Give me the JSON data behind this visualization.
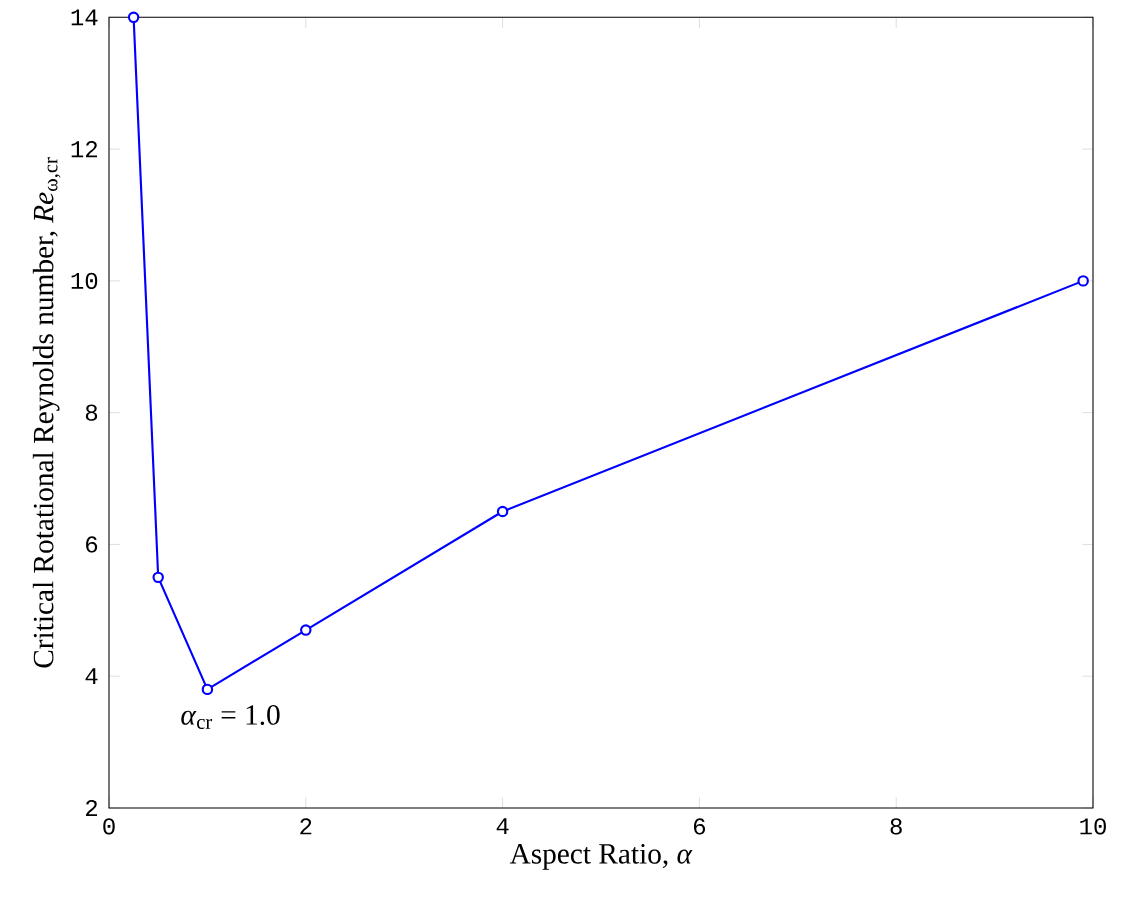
{
  "chart_data": {
    "type": "line",
    "xlabel": "Aspect Ratio, *α*",
    "ylabel": "Critical Rotational Reynolds number, *Re*$_{ω,cr}$",
    "x": [
      0.25,
      0.5,
      1,
      2,
      4,
      9.9
    ],
    "series": [
      {
        "color": "#0000ff",
        "values": [
          14,
          5.5,
          3.8,
          4.7,
          6.5,
          10
        ]
      }
    ],
    "xlim": [
      0,
      10
    ],
    "ylim": [
      2,
      14
    ],
    "xticks": [
      0,
      2,
      4,
      6,
      8,
      10
    ],
    "yticks": [
      2,
      4,
      6,
      8,
      10,
      12,
      14
    ],
    "marker": "circle",
    "line_style": "solid",
    "grid": false,
    "annotations": [
      {
        "text": "*α*$_{cr}$ = 1.0",
        "x": 1,
        "y": 3.8
      }
    ]
  }
}
